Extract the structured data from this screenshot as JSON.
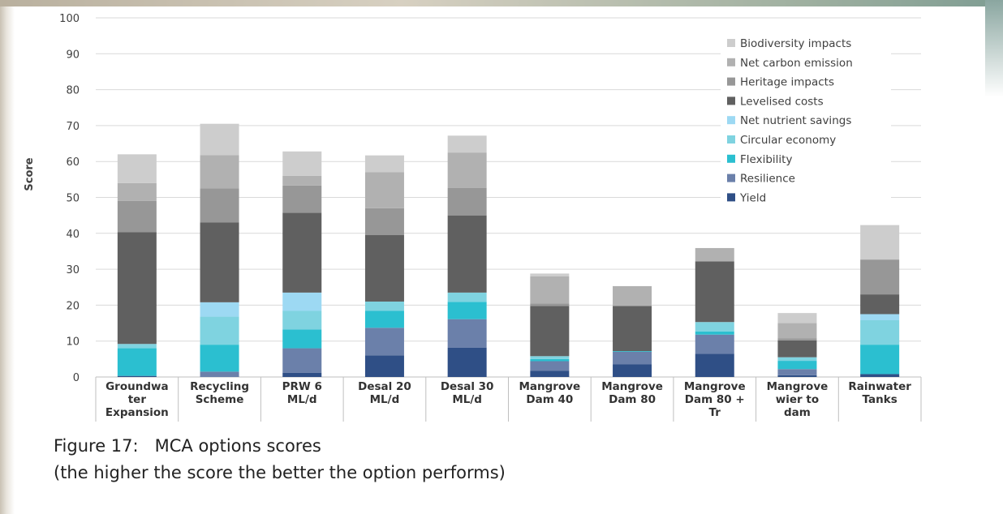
{
  "chart_data": {
    "type": "stacked_bar",
    "y_label": "Score",
    "caption": [
      "Figure 17:   MCA options scores",
      "(the higher the score the better the option performs)"
    ],
    "categories": [
      "Groundwa\nter\nExpansion",
      "Recycling\nScheme",
      "PRW 6\nML/d",
      "Desal 20\nML/d",
      "Desal 30\nML/d",
      "Mangrove\nDam 40",
      "Mangrove\nDam 80",
      "Mangrove\nDam 80 +\nTr",
      "Mangrove\nwier to\ndam",
      "Rainwater\nTanks"
    ],
    "series": [
      {
        "name": "Yield",
        "color": "#2f4f86",
        "values": [
          0.3,
          0,
          1.2,
          6,
          8.2,
          1.7,
          3.5,
          6.5,
          0.5,
          0.8
        ]
      },
      {
        "name": "Resilience",
        "color": "#6b80aa",
        "values": [
          0,
          1.5,
          6.8,
          7.7,
          7.9,
          2.7,
          3.5,
          5.3,
          1.7,
          0
        ]
      },
      {
        "name": "Flexibility",
        "color": "#2bbfd0",
        "values": [
          7.7,
          7.5,
          5.2,
          4.7,
          4.8,
          0.6,
          0.2,
          0.9,
          2.3,
          8.2
        ]
      },
      {
        "name": "Circular economy",
        "color": "#7fd3e0",
        "values": [
          1.2,
          7.8,
          5.2,
          2.6,
          2.6,
          0.8,
          0,
          2.6,
          1,
          6.8
        ]
      },
      {
        "name": "Net nutrient savings",
        "color": "#9dd9f3",
        "values": [
          0,
          4,
          5.1,
          0,
          0,
          0,
          0,
          0,
          0,
          1.7
        ]
      },
      {
        "name": "Levelised costs",
        "color": "#606060",
        "values": [
          31.1,
          22.2,
          22.2,
          18.5,
          21.5,
          14,
          12.6,
          16.9,
          4.7,
          5.5
        ]
      },
      {
        "name": "Heritage impacts",
        "color": "#979797",
        "values": [
          8.7,
          9.5,
          7.6,
          7.5,
          7.6,
          0.7,
          0,
          0,
          0.6,
          9.7
        ]
      },
      {
        "name": "Net carbon emission",
        "color": "#b1b1b1",
        "values": [
          5,
          9.3,
          2.7,
          10,
          9.9,
          7.5,
          5.5,
          3.7,
          4.2,
          0
        ]
      },
      {
        "name": "Biodiversity impacts",
        "color": "#cdcdcd",
        "values": [
          8,
          8.7,
          6.8,
          4.7,
          4.7,
          0.8,
          0,
          0,
          2.8,
          9.6
        ]
      }
    ],
    "ylim": [
      0,
      100
    ],
    "yticks": [
      0,
      10,
      20,
      30,
      40,
      50,
      60,
      70,
      80,
      90,
      100
    ],
    "grid": true,
    "legend": "upper right"
  }
}
